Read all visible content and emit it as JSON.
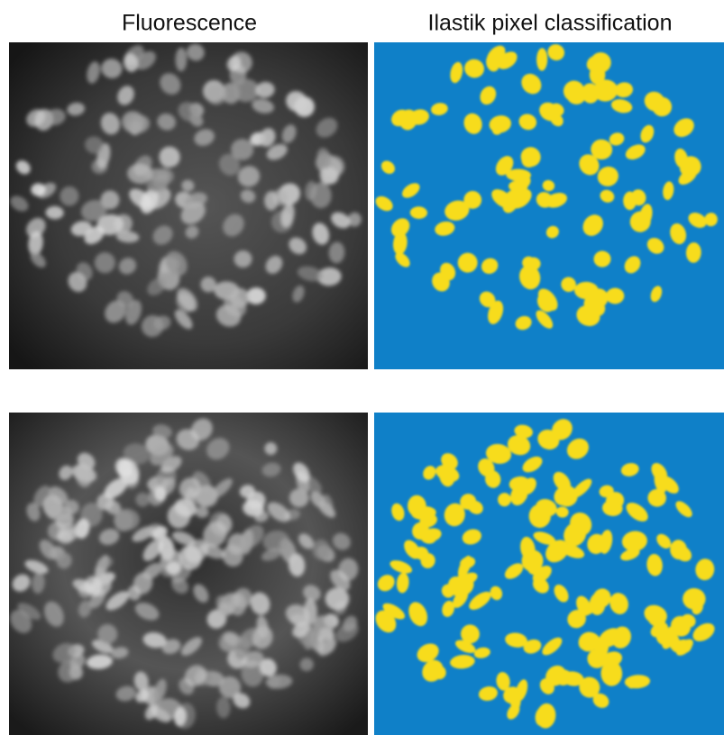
{
  "columns": [
    "Fluorescence",
    "Ilastik pixel classification"
  ]
}
